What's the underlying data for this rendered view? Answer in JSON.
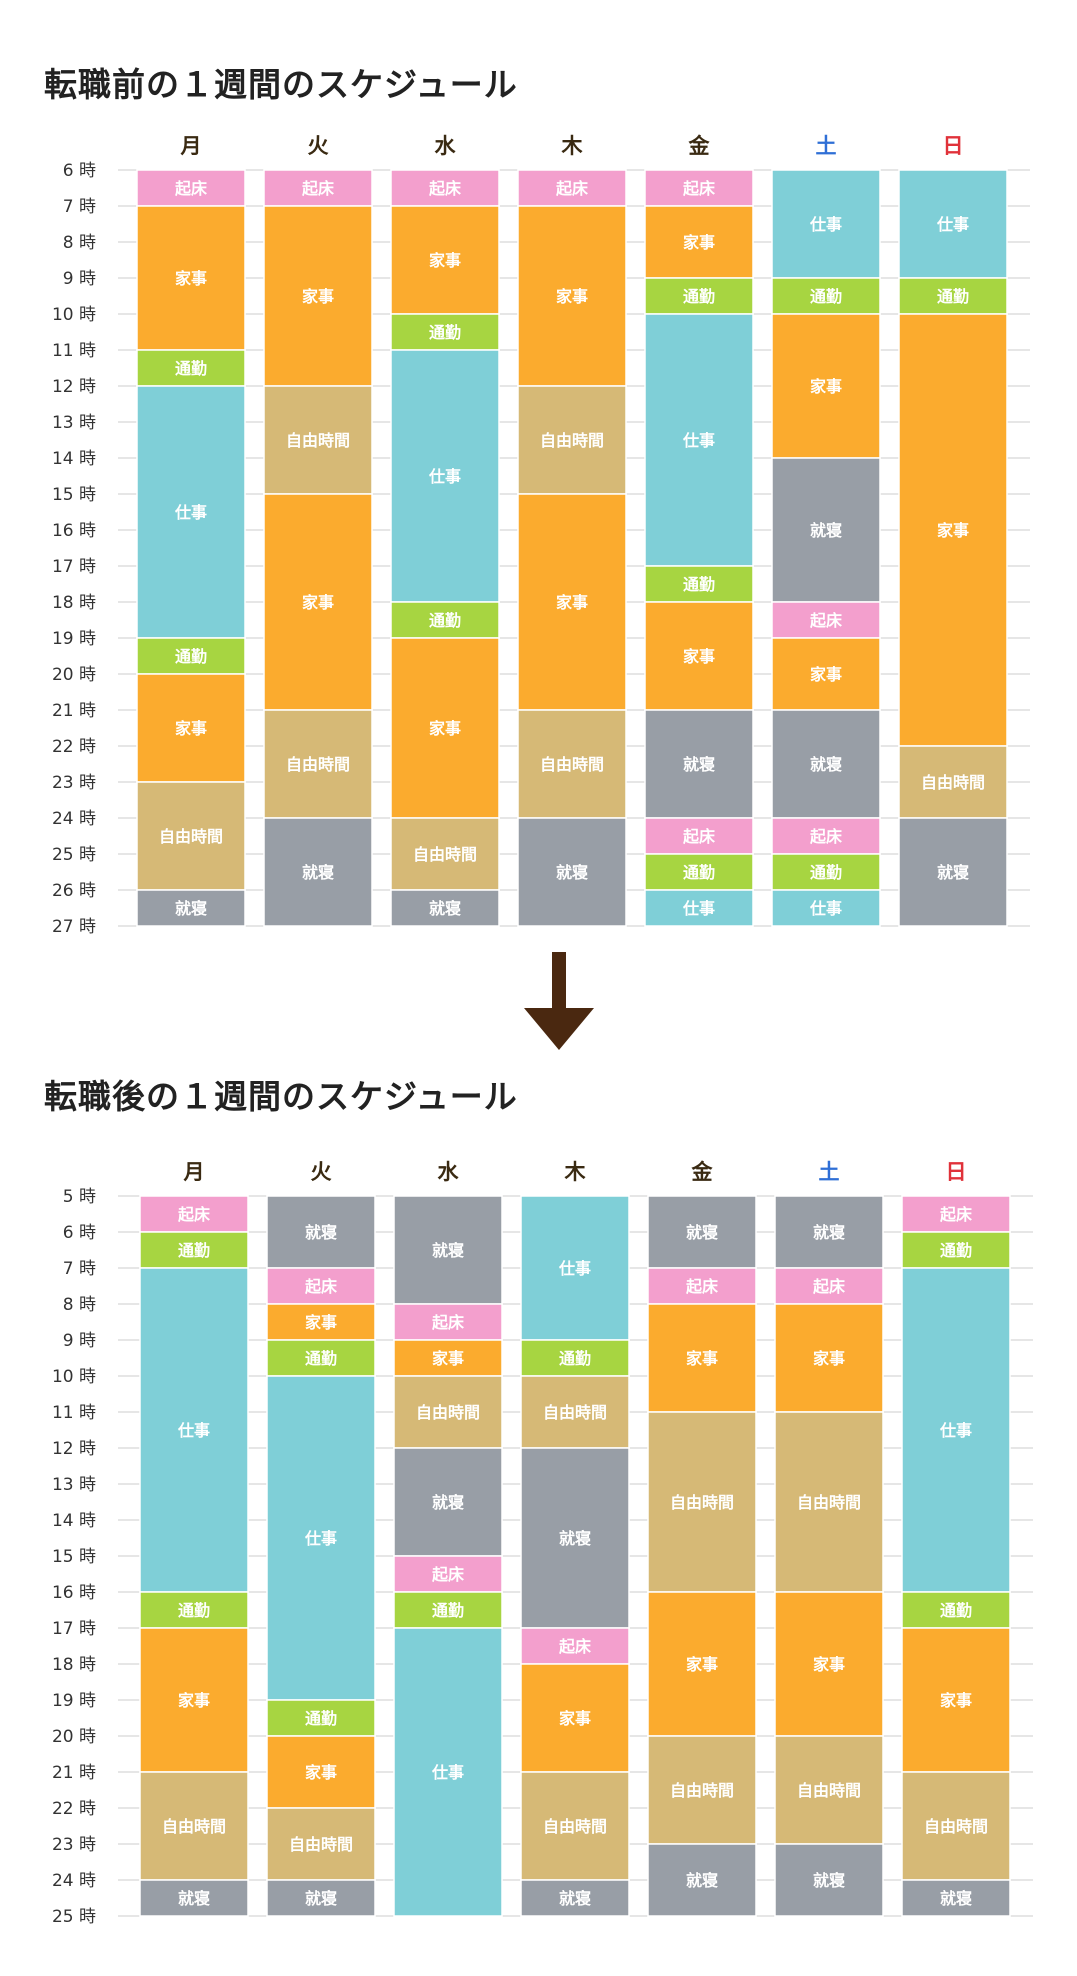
{
  "colors": {
    "起床": "#f39fcd",
    "家事": "#fbab2e",
    "通勤": "#a7d541",
    "仕事": "#7fcfd7",
    "自由時間": "#d6b976",
    "就寝": "#989ea6",
    "day_default": "#3a2a12",
    "saturday": "#2f6fd6",
    "sunday": "#e0323a",
    "arrow": "#4a2810",
    "grid": "#cccccc"
  },
  "chart_data": [
    {
      "type": "stacked-bar",
      "title": "転職前の１週間のスケジュール",
      "days": [
        "月",
        "火",
        "水",
        "木",
        "金",
        "土",
        "日"
      ],
      "hour_unit": "時",
      "y_range": [
        6,
        27
      ],
      "schedule": [
        [
          {
            "a": "起床",
            "s": 6,
            "e": 7
          },
          {
            "a": "家事",
            "s": 7,
            "e": 11
          },
          {
            "a": "通勤",
            "s": 11,
            "e": 12
          },
          {
            "a": "仕事",
            "s": 12,
            "e": 19
          },
          {
            "a": "通勤",
            "s": 19,
            "e": 20
          },
          {
            "a": "家事",
            "s": 20,
            "e": 23
          },
          {
            "a": "自由時間",
            "s": 23,
            "e": 26
          },
          {
            "a": "就寝",
            "s": 26,
            "e": 27
          }
        ],
        [
          {
            "a": "起床",
            "s": 6,
            "e": 7
          },
          {
            "a": "家事",
            "s": 7,
            "e": 12
          },
          {
            "a": "自由時間",
            "s": 12,
            "e": 15
          },
          {
            "a": "家事",
            "s": 15,
            "e": 21
          },
          {
            "a": "自由時間",
            "s": 21,
            "e": 24
          },
          {
            "a": "就寝",
            "s": 24,
            "e": 27
          }
        ],
        [
          {
            "a": "起床",
            "s": 6,
            "e": 7
          },
          {
            "a": "家事",
            "s": 7,
            "e": 10
          },
          {
            "a": "通勤",
            "s": 10,
            "e": 11
          },
          {
            "a": "仕事",
            "s": 11,
            "e": 18
          },
          {
            "a": "通勤",
            "s": 18,
            "e": 19
          },
          {
            "a": "家事",
            "s": 19,
            "e": 24
          },
          {
            "a": "自由時間",
            "s": 24,
            "e": 26
          },
          {
            "a": "就寝",
            "s": 26,
            "e": 27
          }
        ],
        [
          {
            "a": "起床",
            "s": 6,
            "e": 7
          },
          {
            "a": "家事",
            "s": 7,
            "e": 12
          },
          {
            "a": "自由時間",
            "s": 12,
            "e": 15
          },
          {
            "a": "家事",
            "s": 15,
            "e": 21
          },
          {
            "a": "自由時間",
            "s": 21,
            "e": 24
          },
          {
            "a": "就寝",
            "s": 24,
            "e": 27
          }
        ],
        [
          {
            "a": "起床",
            "s": 6,
            "e": 7
          },
          {
            "a": "家事",
            "s": 7,
            "e": 9
          },
          {
            "a": "通勤",
            "s": 9,
            "e": 10
          },
          {
            "a": "仕事",
            "s": 10,
            "e": 17
          },
          {
            "a": "通勤",
            "s": 17,
            "e": 18
          },
          {
            "a": "家事",
            "s": 18,
            "e": 21
          },
          {
            "a": "就寝",
            "s": 21,
            "e": 24
          },
          {
            "a": "起床",
            "s": 24,
            "e": 25
          },
          {
            "a": "通勤",
            "s": 25,
            "e": 26
          },
          {
            "a": "仕事",
            "s": 26,
            "e": 27
          }
        ],
        [
          {
            "a": "仕事",
            "s": 6,
            "e": 9
          },
          {
            "a": "通勤",
            "s": 9,
            "e": 10
          },
          {
            "a": "家事",
            "s": 10,
            "e": 14
          },
          {
            "a": "就寝",
            "s": 14,
            "e": 18
          },
          {
            "a": "起床",
            "s": 18,
            "e": 19
          },
          {
            "a": "家事",
            "s": 19,
            "e": 21
          },
          {
            "a": "就寝",
            "s": 21,
            "e": 24
          },
          {
            "a": "起床",
            "s": 24,
            "e": 25
          },
          {
            "a": "通勤",
            "s": 25,
            "e": 26
          },
          {
            "a": "仕事",
            "s": 26,
            "e": 27
          }
        ],
        [
          {
            "a": "仕事",
            "s": 6,
            "e": 9
          },
          {
            "a": "通勤",
            "s": 9,
            "e": 10
          },
          {
            "a": "家事",
            "s": 10,
            "e": 22
          },
          {
            "a": "自由時間",
            "s": 22,
            "e": 24
          },
          {
            "a": "就寝",
            "s": 24,
            "e": 27
          }
        ]
      ]
    },
    {
      "type": "stacked-bar",
      "title": "転職後の１週間のスケジュール",
      "days": [
        "月",
        "火",
        "水",
        "木",
        "金",
        "土",
        "日"
      ],
      "hour_unit": "時",
      "y_range": [
        5,
        25
      ],
      "schedule": [
        [
          {
            "a": "起床",
            "s": 5,
            "e": 6
          },
          {
            "a": "通勤",
            "s": 6,
            "e": 7
          },
          {
            "a": "仕事",
            "s": 7,
            "e": 16
          },
          {
            "a": "通勤",
            "s": 16,
            "e": 17
          },
          {
            "a": "家事",
            "s": 17,
            "e": 21
          },
          {
            "a": "自由時間",
            "s": 21,
            "e": 24
          },
          {
            "a": "就寝",
            "s": 24,
            "e": 25
          }
        ],
        [
          {
            "a": "就寝",
            "s": 5,
            "e": 7
          },
          {
            "a": "起床",
            "s": 7,
            "e": 8
          },
          {
            "a": "家事",
            "s": 8,
            "e": 9
          },
          {
            "a": "通勤",
            "s": 9,
            "e": 10
          },
          {
            "a": "仕事",
            "s": 10,
            "e": 19
          },
          {
            "a": "通勤",
            "s": 19,
            "e": 20
          },
          {
            "a": "家事",
            "s": 20,
            "e": 22
          },
          {
            "a": "自由時間",
            "s": 22,
            "e": 24
          },
          {
            "a": "就寝",
            "s": 24,
            "e": 25
          }
        ],
        [
          {
            "a": "就寝",
            "s": 5,
            "e": 8
          },
          {
            "a": "起床",
            "s": 8,
            "e": 9
          },
          {
            "a": "家事",
            "s": 9,
            "e": 10
          },
          {
            "a": "自由時間",
            "s": 10,
            "e": 12
          },
          {
            "a": "就寝",
            "s": 12,
            "e": 15
          },
          {
            "a": "起床",
            "s": 15,
            "e": 16
          },
          {
            "a": "通勤",
            "s": 16,
            "e": 17
          },
          {
            "a": "仕事",
            "s": 17,
            "e": 25
          }
        ],
        [
          {
            "a": "仕事",
            "s": 5,
            "e": 9
          },
          {
            "a": "通勤",
            "s": 9,
            "e": 10
          },
          {
            "a": "自由時間",
            "s": 10,
            "e": 12
          },
          {
            "a": "就寝",
            "s": 12,
            "e": 17
          },
          {
            "a": "起床",
            "s": 17,
            "e": 18
          },
          {
            "a": "家事",
            "s": 18,
            "e": 21
          },
          {
            "a": "自由時間",
            "s": 21,
            "e": 24
          },
          {
            "a": "就寝",
            "s": 24,
            "e": 25
          }
        ],
        [
          {
            "a": "就寝",
            "s": 5,
            "e": 7
          },
          {
            "a": "起床",
            "s": 7,
            "e": 8
          },
          {
            "a": "家事",
            "s": 8,
            "e": 11
          },
          {
            "a": "自由時間",
            "s": 11,
            "e": 16
          },
          {
            "a": "家事",
            "s": 16,
            "e": 20
          },
          {
            "a": "自由時間",
            "s": 20,
            "e": 23
          },
          {
            "a": "就寝",
            "s": 23,
            "e": 25
          }
        ],
        [
          {
            "a": "就寝",
            "s": 5,
            "e": 7
          },
          {
            "a": "起床",
            "s": 7,
            "e": 8
          },
          {
            "a": "家事",
            "s": 8,
            "e": 11
          },
          {
            "a": "自由時間",
            "s": 11,
            "e": 16
          },
          {
            "a": "家事",
            "s": 16,
            "e": 20
          },
          {
            "a": "自由時間",
            "s": 20,
            "e": 23
          },
          {
            "a": "就寝",
            "s": 23,
            "e": 25
          }
        ],
        [
          {
            "a": "起床",
            "s": 5,
            "e": 6
          },
          {
            "a": "通勤",
            "s": 6,
            "e": 7
          },
          {
            "a": "仕事",
            "s": 7,
            "e": 16
          },
          {
            "a": "通勤",
            "s": 16,
            "e": 17
          },
          {
            "a": "家事",
            "s": 17,
            "e": 21
          },
          {
            "a": "自由時間",
            "s": 21,
            "e": 24
          },
          {
            "a": "就寝",
            "s": 24,
            "e": 25
          }
        ]
      ]
    }
  ]
}
